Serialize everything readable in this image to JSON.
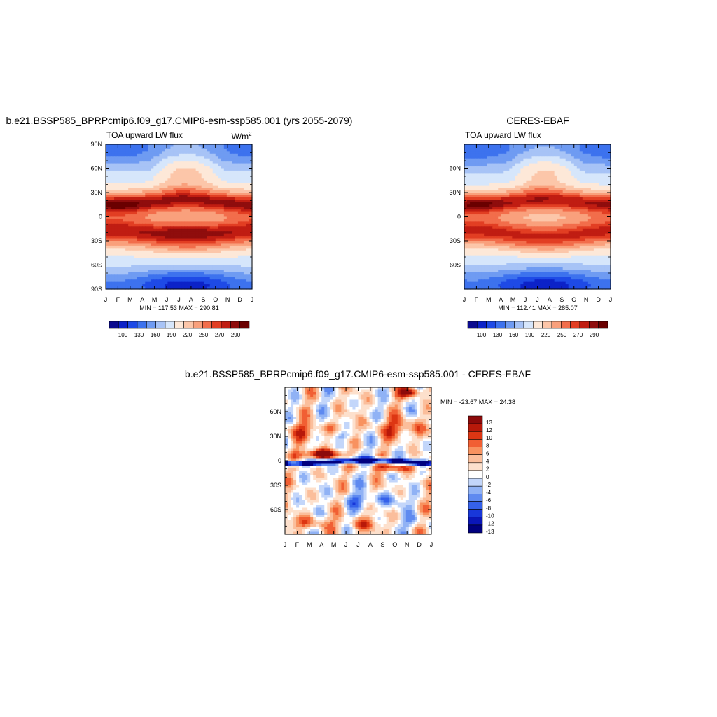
{
  "palettes": {
    "abs": [
      "#0b0b8f",
      "#0c22c8",
      "#1e4ae6",
      "#3d72ee",
      "#6f9bf2",
      "#a7c3f6",
      "#d6e6fb",
      "#fde8d8",
      "#fcc6a9",
      "#f9a07c",
      "#f26d4b",
      "#e23e23",
      "#c01d12",
      "#8f0d0d",
      "#6a0000"
    ],
    "diff": [
      "#00007f",
      "#0a16b8",
      "#1837d9",
      "#3561ea",
      "#5f8af0",
      "#90b2f5",
      "#c3d6fa",
      "#ffffff",
      "#fde0cc",
      "#fbbe9b",
      "#f8925f",
      "#f15f33",
      "#dd3613",
      "#b8190a",
      "#8c0a0a"
    ]
  },
  "panels": [
    {
      "title": "b.e21.BSSP585_BPRPcmip6.f09_g17.CMIP6-esm-ssp585.001 (yrs 2055-2079)",
      "left_label": "TOA upward LW flux",
      "units_base": "W/m",
      "units_sup": "2",
      "stats": "MIN = 117.53 MAX = 290.81"
    },
    {
      "title": "CERES-EBAF",
      "left_label": "TOA upward LW flux",
      "units_base": "",
      "units_sup": "",
      "stats": "MIN = 112.41 MAX = 285.07"
    },
    {
      "title": "b.e21.BSSP585_BPRPcmip6.f09_g17.CMIP6-esm-ssp585.001 - CERES-EBAF",
      "left_label": "",
      "units_base": "",
      "units_sup": "",
      "stats": "MIN = -23.67 MAX =  24.38"
    }
  ],
  "chart_data": [
    {
      "type": "heatmap",
      "title": "b.e21.BSSP585_BPRPcmip6.f09_g17.CMIP6-esm-ssp585.001 (yrs 2055-2079)",
      "variable": "TOA upward LW flux",
      "units": "W/m2",
      "x_ticks": [
        "J",
        "F",
        "M",
        "A",
        "M",
        "J",
        "J",
        "A",
        "S",
        "O",
        "N",
        "D",
        "J"
      ],
      "y_ticks": [
        "90N",
        "60N",
        "30N",
        "0",
        "30S",
        "60S",
        "90S"
      ],
      "xlim": [
        0,
        12
      ],
      "ylim": [
        -90,
        90
      ],
      "min": 117.53,
      "max": 290.81,
      "colorbar_labels": [
        "100",
        "130",
        "160",
        "190",
        "220",
        "250",
        "270",
        "290"
      ],
      "contour_levels": [
        100,
        115,
        130,
        145,
        160,
        175,
        190,
        205,
        220,
        235,
        250,
        260,
        270,
        280,
        290
      ],
      "grid": false
    },
    {
      "type": "heatmap",
      "title": "CERES-EBAF",
      "variable": "TOA upward LW flux",
      "x_ticks": [
        "J",
        "F",
        "M",
        "A",
        "M",
        "J",
        "J",
        "A",
        "S",
        "O",
        "N",
        "D",
        "J"
      ],
      "y_ticks": [
        "60N",
        "30N",
        "0",
        "30S",
        "60S"
      ],
      "xlim": [
        0,
        12
      ],
      "ylim": [
        -90,
        90
      ],
      "min": 112.41,
      "max": 285.07,
      "colorbar_labels": [
        "100",
        "130",
        "160",
        "190",
        "220",
        "250",
        "270",
        "290"
      ],
      "contour_levels": [
        100,
        115,
        130,
        145,
        160,
        175,
        190,
        205,
        220,
        235,
        250,
        260,
        270,
        280,
        290
      ],
      "grid": false
    },
    {
      "type": "heatmap",
      "title": "b.e21.BSSP585_BPRPcmip6.f09_g17.CMIP6-esm-ssp585.001 - CERES-EBAF",
      "x_ticks": [
        "J",
        "F",
        "M",
        "A",
        "M",
        "J",
        "J",
        "A",
        "S",
        "O",
        "N",
        "D",
        "J"
      ],
      "y_ticks": [
        "60N",
        "30N",
        "0",
        "30S",
        "60S"
      ],
      "xlim": [
        0,
        12
      ],
      "ylim": [
        -90,
        90
      ],
      "min": -23.67,
      "max": 24.38,
      "colorbar_labels": [
        "13",
        "12",
        "10",
        "8",
        "6",
        "4",
        "2",
        "0",
        "-2",
        "-4",
        "-6",
        "-8",
        "-10",
        "-12",
        "-13"
      ],
      "contour_levels": [
        -13,
        -12,
        -10,
        -8,
        -6,
        -4,
        -2,
        0,
        2,
        4,
        6,
        8,
        10,
        12,
        13
      ],
      "grid": false
    }
  ]
}
